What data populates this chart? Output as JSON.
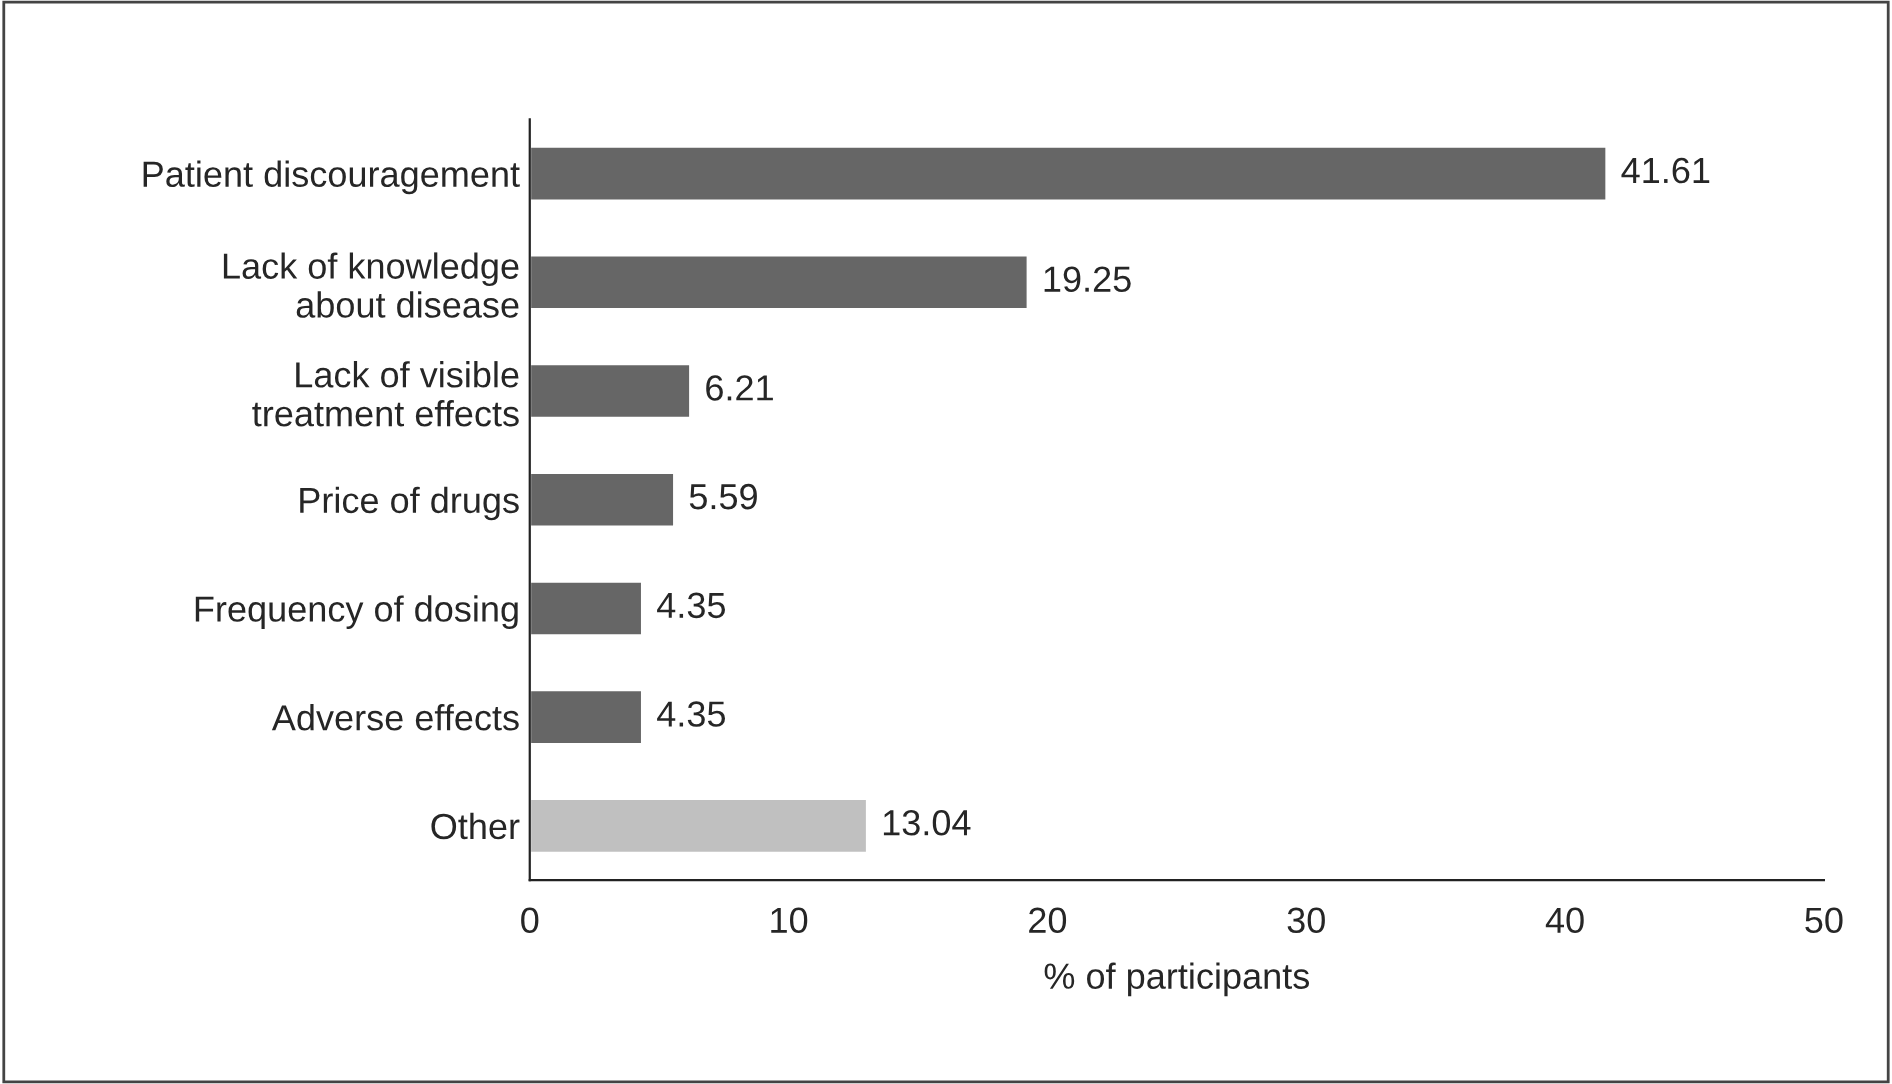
{
  "chart_data": {
    "type": "bar",
    "orientation": "horizontal",
    "xlabel": "% of participants",
    "categories": [
      "Patient discouragement",
      "Lack of knowledge\nabout disease",
      "Lack of visible\ntreatment effects",
      "Price of drugs",
      "Frequency of dosing",
      "Adverse effects",
      "Other"
    ],
    "values": [
      41.61,
      19.25,
      6.21,
      5.59,
      4.35,
      4.35,
      13.04
    ],
    "colors": [
      "#666666",
      "#666666",
      "#666666",
      "#666666",
      "#666666",
      "#666666",
      "#c0c0c0"
    ],
    "xlim": [
      0,
      50
    ],
    "xticks": [
      0,
      10,
      20,
      30,
      40,
      50
    ],
    "grid": false,
    "data_labels": true
  }
}
